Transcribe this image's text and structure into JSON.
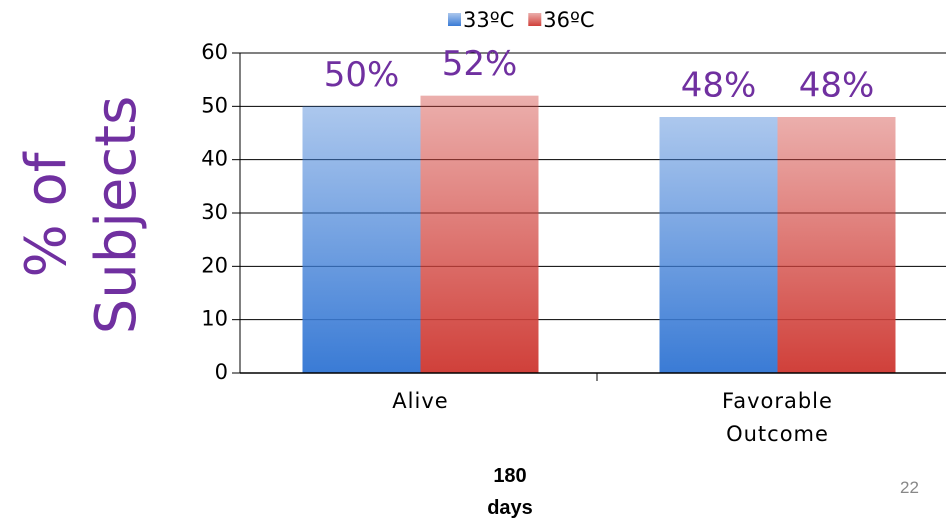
{
  "chart_data": {
    "type": "bar",
    "y_label": [
      "% of",
      "Subjects"
    ],
    "categories": [
      "Alive",
      "Favorable Outcome"
    ],
    "series": [
      {
        "name": "33ºC",
        "color": "#3a7bd5",
        "values": [
          50,
          48
        ],
        "value_labels": [
          "50%",
          "48%"
        ]
      },
      {
        "name": "36ºC",
        "color": "#d0403a",
        "values": [
          52,
          48
        ],
        "value_labels": [
          "52%",
          "48%"
        ]
      }
    ],
    "ylim": [
      0,
      60
    ],
    "yticks": [
      0,
      10,
      20,
      30,
      40,
      50,
      60
    ],
    "grid": true,
    "legend": "top"
  },
  "footer": "180 days",
  "page_number": "22"
}
